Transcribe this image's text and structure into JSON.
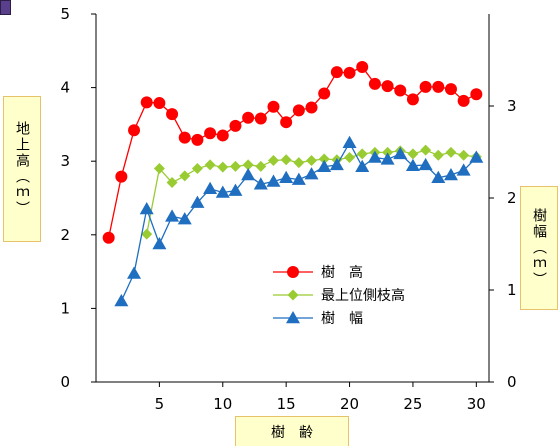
{
  "chart_data": {
    "type": "line",
    "xlabel": "樹　齢",
    "ylabel": "地上高（ｍ）",
    "ylabel_right": "樹幅（ｍ）",
    "xlim": [
      0,
      31
    ],
    "ylim": [
      0,
      5
    ],
    "ylim_right": [
      0,
      4
    ],
    "xticks": [
      5,
      10,
      15,
      20,
      25,
      30
    ],
    "yticks": [
      0,
      1,
      2,
      3,
      4,
      5
    ],
    "yticks_right": [
      0,
      1,
      2,
      3
    ],
    "grid": false,
    "legend_position": "lower-right",
    "series": [
      {
        "name": "樹　高",
        "color": "#ff0000",
        "marker": "circle",
        "axis": "left",
        "x": [
          1,
          2,
          3,
          4,
          5,
          6,
          7,
          8,
          9,
          10,
          11,
          12,
          13,
          14,
          15,
          16,
          17,
          18,
          19,
          20,
          21,
          22,
          23,
          24,
          25,
          26,
          27,
          28,
          29,
          30
        ],
        "y": [
          1.96,
          2.79,
          3.42,
          3.8,
          3.79,
          3.64,
          3.32,
          3.29,
          3.38,
          3.35,
          3.48,
          3.59,
          3.58,
          3.74,
          3.53,
          3.69,
          3.73,
          3.92,
          4.21,
          4.2,
          4.28,
          4.05,
          4.02,
          3.96,
          3.84,
          4.01,
          4.01,
          3.98,
          3.82,
          3.91
        ]
      },
      {
        "name": "最上位側枝高",
        "color": "#99cc33",
        "marker": "diamond",
        "axis": "left",
        "x": [
          4,
          5,
          6,
          7,
          8,
          9,
          10,
          11,
          12,
          13,
          14,
          15,
          16,
          17,
          18,
          19,
          20,
          21,
          22,
          23,
          24,
          25,
          26,
          27,
          28,
          29,
          30
        ],
        "y": [
          2.01,
          2.9,
          2.71,
          2.8,
          2.9,
          2.95,
          2.92,
          2.93,
          2.95,
          2.93,
          3.01,
          3.02,
          2.98,
          3.01,
          3.03,
          3.02,
          3.05,
          3.1,
          3.12,
          3.12,
          3.14,
          3.1,
          3.15,
          3.08,
          3.12,
          3.08,
          3.06
        ]
      },
      {
        "name": "樹　幅",
        "color": "#1f6ec0",
        "marker": "triangle",
        "axis": "right",
        "x": [
          2,
          3,
          4,
          5,
          6,
          7,
          8,
          9,
          10,
          11,
          12,
          13,
          14,
          15,
          16,
          17,
          18,
          19,
          20,
          21,
          22,
          23,
          24,
          25,
          26,
          27,
          28,
          29,
          30
        ],
        "y": [
          0.88,
          1.18,
          1.88,
          1.5,
          1.8,
          1.77,
          1.95,
          2.1,
          2.06,
          2.08,
          2.25,
          2.15,
          2.18,
          2.22,
          2.2,
          2.26,
          2.34,
          2.36,
          2.6,
          2.34,
          2.44,
          2.42,
          2.48,
          2.35,
          2.36,
          2.22,
          2.25,
          2.3,
          2.44
        ]
      }
    ]
  }
}
